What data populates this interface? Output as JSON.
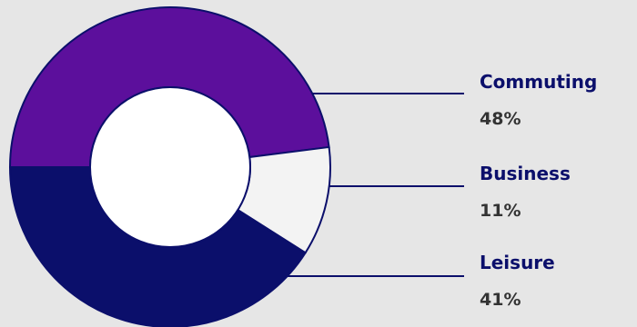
{
  "chart_data": {
    "type": "pie",
    "variant": "donut",
    "title": "",
    "slices": [
      {
        "label": "Commuting",
        "value": 48,
        "display": "48%",
        "color": "#5c0f9c"
      },
      {
        "label": "Business",
        "value": 11,
        "display": "11%",
        "color": "#f3f3f3"
      },
      {
        "label": "Leisure",
        "value": 41,
        "display": "41%",
        "color": "#0b0f6b"
      }
    ],
    "legend_placement": "right",
    "background": "#e6e6e6",
    "outline_color": "#0b0f6b",
    "label_name_color": "#0b0f6b",
    "label_value_color": "#333333"
  }
}
